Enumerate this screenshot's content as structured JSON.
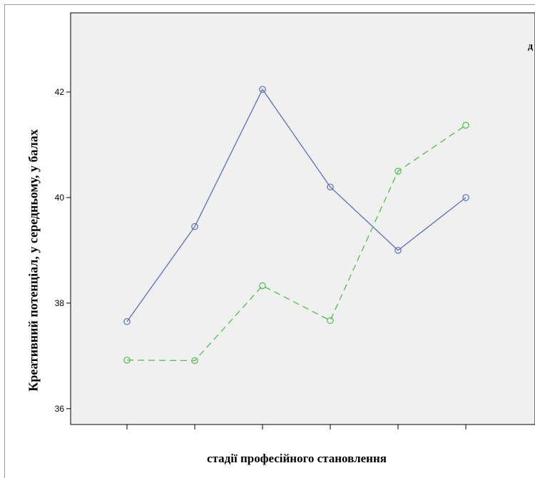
{
  "chart_data": {
    "type": "line",
    "xlabel": "стадії професійного становлення",
    "ylabel": "Креативний потенціал, у середньому, у балах",
    "ylim": [
      35.7,
      43.5
    ],
    "y_ticks": [
      36,
      38,
      40,
      42
    ],
    "y_tick_labels": [
      "36",
      "38",
      "40",
      "42"
    ],
    "x": [
      1,
      2,
      3,
      4,
      5,
      6
    ],
    "series": [
      {
        "color": "#5b6dbf",
        "dash": "solid",
        "values": [
          37.65,
          39.45,
          42.05,
          40.2,
          39.0,
          40.0
        ]
      },
      {
        "color": "#4fbe4f",
        "dash": "dashed",
        "values": [
          36.92,
          36.91,
          38.33,
          37.67,
          40.5,
          41.37
        ]
      }
    ],
    "grid": false,
    "plot_background": "#f0f0f0",
    "legend_fragment": "д"
  }
}
